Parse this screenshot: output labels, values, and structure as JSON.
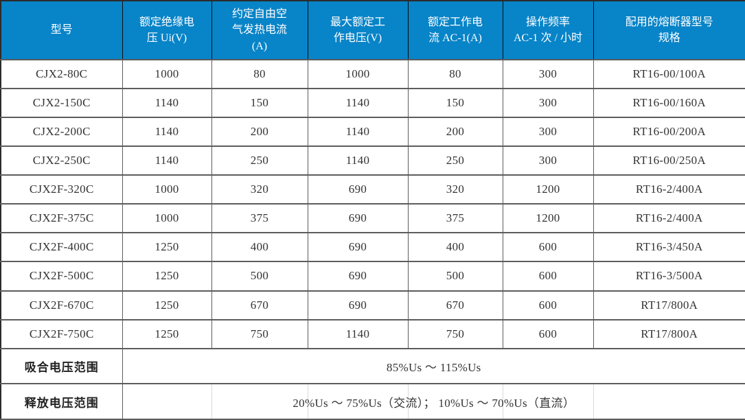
{
  "table": {
    "columns": [
      {
        "label": "型号"
      },
      {
        "label": "额定绝缘电\n压 Ui(V)"
      },
      {
        "label": "约定自由空\n气发热电流\n(A)"
      },
      {
        "label": "最大额定工\n作电压(V)"
      },
      {
        "label": "额定工作电\n流 AC-1(A)"
      },
      {
        "label": "操作频率\nAC-1 次 / 小时"
      },
      {
        "label": "配用的熔断器型号\n规格"
      }
    ],
    "rows": [
      {
        "cells": [
          "CJX2-80C",
          "1000",
          "80",
          "1000",
          "80",
          "300",
          "RT16-00/100A"
        ]
      },
      {
        "cells": [
          "CJX2-150C",
          "1140",
          "150",
          "1140",
          "150",
          "300",
          "RT16-00/160A"
        ]
      },
      {
        "cells": [
          "CJX2-200C",
          "1140",
          "200",
          "1140",
          "200",
          "300",
          "RT16-00/200A"
        ]
      },
      {
        "cells": [
          "CJX2-250C",
          "1140",
          "250",
          "1140",
          "250",
          "300",
          "RT16-00/250A"
        ]
      },
      {
        "cells": [
          "CJX2F-320C",
          "1000",
          "320",
          "690",
          "320",
          "1200",
          "RT16-2/400A"
        ]
      },
      {
        "cells": [
          "CJX2F-375C",
          "1000",
          "375",
          "690",
          "375",
          "1200",
          "RT16-2/400A"
        ]
      },
      {
        "cells": [
          "CJX2F-400C",
          "1250",
          "400",
          "690",
          "400",
          "600",
          "RT16-3/450A"
        ]
      },
      {
        "cells": [
          "CJX2F-500C",
          "1250",
          "500",
          "690",
          "500",
          "600",
          "RT16-3/500A"
        ]
      },
      {
        "cells": [
          "CJX2F-670C",
          "1250",
          "670",
          "690",
          "670",
          "600",
          "RT17/800A"
        ]
      },
      {
        "cells": [
          "CJX2F-750C",
          "1250",
          "750",
          "1140",
          "750",
          "600",
          "RT17/800A"
        ]
      }
    ],
    "footer_rows": [
      {
        "label": "吸合电压范围",
        "value": "85%Us ～ 115%Us"
      },
      {
        "label": "释放电压范围",
        "value": "20%Us ～ 75%Us（交流）； 10%Us ～ 70%Us（直流）"
      }
    ],
    "colors": {
      "header_bg": "#0884c8",
      "header_text": "#ffffff",
      "body_text": "#333333",
      "grid_border": "#5c5c5c",
      "outer_border": "#2b2b2b"
    }
  }
}
